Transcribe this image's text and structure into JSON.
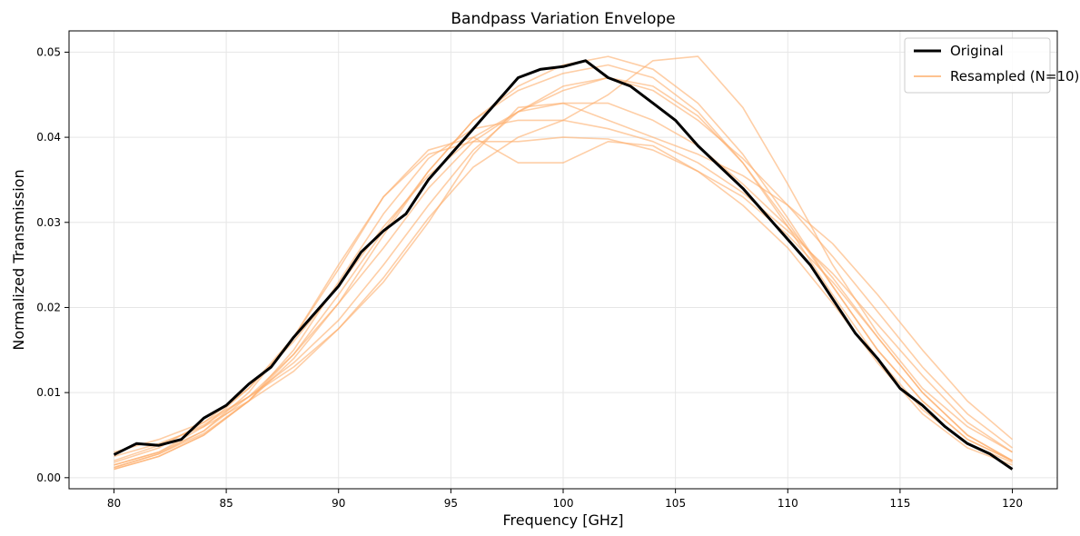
{
  "chart_data": {
    "type": "line",
    "title": "Bandpass Variation Envelope",
    "xlabel": "Frequency [GHz]",
    "ylabel": "Normalized Transmission",
    "xlim": [
      78.0,
      122.0
    ],
    "ylim": [
      -0.0013,
      0.0525
    ],
    "xticks": [
      80,
      85,
      90,
      95,
      100,
      105,
      110,
      115,
      120
    ],
    "yticks": [
      0.0,
      0.01,
      0.02,
      0.03,
      0.04,
      0.05
    ],
    "ytick_labels": [
      "0.00",
      "0.01",
      "0.02",
      "0.03",
      "0.04",
      "0.05"
    ],
    "grid": true,
    "legend_position": "top-right",
    "original": {
      "name": "Original",
      "color": "#000000",
      "x": [
        80,
        81,
        82,
        83,
        84,
        85,
        86,
        87,
        88,
        89,
        90,
        91,
        92,
        93,
        94,
        95,
        96,
        97,
        98,
        99,
        100,
        101,
        102,
        103,
        104,
        105,
        106,
        107,
        108,
        109,
        110,
        111,
        112,
        113,
        114,
        115,
        116,
        117,
        118,
        119,
        120
      ],
      "y": [
        0.0027,
        0.004,
        0.0038,
        0.0045,
        0.007,
        0.0085,
        0.011,
        0.013,
        0.0165,
        0.0195,
        0.0225,
        0.0265,
        0.029,
        0.031,
        0.035,
        0.038,
        0.041,
        0.044,
        0.047,
        0.048,
        0.0483,
        0.049,
        0.047,
        0.046,
        0.044,
        0.042,
        0.039,
        0.0365,
        0.034,
        0.031,
        0.028,
        0.025,
        0.021,
        0.017,
        0.014,
        0.0105,
        0.0085,
        0.006,
        0.004,
        0.0028,
        0.001
      ]
    },
    "resampled": {
      "name": "Resampled (N=10)",
      "color": "#fdae6b",
      "series": [
        {
          "x": [
            80,
            82,
            84,
            86,
            88,
            90,
            92,
            94,
            96,
            98,
            100,
            102,
            104,
            106,
            108,
            110,
            112,
            114,
            116,
            118,
            120
          ],
          "y": [
            0.0015,
            0.003,
            0.006,
            0.0105,
            0.0165,
            0.0245,
            0.033,
            0.0385,
            0.04,
            0.037,
            0.037,
            0.0395,
            0.039,
            0.036,
            0.033,
            0.0285,
            0.023,
            0.0165,
            0.01,
            0.005,
            0.002
          ]
        },
        {
          "x": [
            80,
            82,
            84,
            86,
            88,
            90,
            92,
            94,
            96,
            98,
            100,
            102,
            104,
            106,
            108,
            110,
            112,
            114,
            116,
            118,
            120
          ],
          "y": [
            0.001,
            0.0025,
            0.005,
            0.009,
            0.0145,
            0.0215,
            0.029,
            0.036,
            0.042,
            0.046,
            0.0485,
            0.0495,
            0.048,
            0.044,
            0.038,
            0.0305,
            0.0225,
            0.015,
            0.009,
            0.0045,
            0.002
          ]
        },
        {
          "x": [
            80,
            82,
            84,
            86,
            88,
            90,
            92,
            94,
            96,
            98,
            100,
            102,
            104,
            106,
            108,
            110,
            112,
            114,
            116,
            118,
            120
          ],
          "y": [
            0.003,
            0.0045,
            0.0065,
            0.0095,
            0.013,
            0.0175,
            0.023,
            0.03,
            0.038,
            0.0435,
            0.044,
            0.042,
            0.04,
            0.038,
            0.0355,
            0.032,
            0.0275,
            0.0215,
            0.015,
            0.009,
            0.0045
          ]
        },
        {
          "x": [
            80,
            82,
            84,
            86,
            88,
            90,
            92,
            94,
            96,
            98,
            100,
            102,
            104,
            106,
            108,
            110,
            112,
            114,
            116,
            118,
            120
          ],
          "y": [
            0.0012,
            0.0028,
            0.0055,
            0.01,
            0.0165,
            0.025,
            0.033,
            0.038,
            0.0395,
            0.0395,
            0.04,
            0.0398,
            0.0385,
            0.036,
            0.032,
            0.027,
            0.0205,
            0.0135,
            0.0075,
            0.0035,
            0.0015
          ]
        },
        {
          "x": [
            80,
            82,
            84,
            86,
            88,
            90,
            92,
            94,
            96,
            98,
            100,
            102,
            104,
            106,
            108,
            110,
            112,
            114,
            116,
            118,
            120
          ],
          "y": [
            0.0025,
            0.004,
            0.006,
            0.009,
            0.0125,
            0.0175,
            0.0235,
            0.0305,
            0.0365,
            0.04,
            0.042,
            0.045,
            0.049,
            0.0495,
            0.0435,
            0.0345,
            0.025,
            0.017,
            0.0105,
            0.006,
            0.003
          ]
        },
        {
          "x": [
            80,
            82,
            84,
            86,
            88,
            90,
            92,
            94,
            96,
            98,
            100,
            102,
            104,
            106,
            108,
            110,
            112,
            114,
            116,
            118,
            120
          ],
          "y": [
            0.0018,
            0.0035,
            0.0065,
            0.0105,
            0.016,
            0.0225,
            0.0295,
            0.0355,
            0.04,
            0.043,
            0.044,
            0.044,
            0.042,
            0.039,
            0.0345,
            0.0295,
            0.0235,
            0.0165,
            0.01,
            0.005,
            0.002
          ]
        },
        {
          "x": [
            80,
            82,
            84,
            86,
            88,
            90,
            92,
            94,
            96,
            98,
            100,
            102,
            104,
            106,
            108,
            110,
            112,
            114,
            116,
            118,
            120
          ],
          "y": [
            0.0015,
            0.003,
            0.0055,
            0.0095,
            0.0145,
            0.0205,
            0.027,
            0.034,
            0.0395,
            0.043,
            0.0455,
            0.047,
            0.046,
            0.0425,
            0.037,
            0.03,
            0.0225,
            0.015,
            0.009,
            0.0045,
            0.002
          ]
        },
        {
          "x": [
            80,
            82,
            84,
            86,
            88,
            90,
            92,
            94,
            96,
            98,
            100,
            102,
            104,
            106,
            108,
            110,
            112,
            114,
            116,
            118,
            120
          ],
          "y": [
            0.0012,
            0.0028,
            0.0052,
            0.009,
            0.014,
            0.0205,
            0.0285,
            0.036,
            0.042,
            0.0455,
            0.0475,
            0.0485,
            0.047,
            0.043,
            0.037,
            0.0295,
            0.0215,
            0.014,
            0.008,
            0.004,
            0.0018
          ]
        },
        {
          "x": [
            80,
            82,
            84,
            86,
            88,
            90,
            92,
            94,
            96,
            98,
            100,
            102,
            104,
            106,
            108,
            110,
            112,
            114,
            116,
            118,
            120
          ],
          "y": [
            0.002,
            0.0038,
            0.0062,
            0.0095,
            0.0135,
            0.0185,
            0.025,
            0.032,
            0.0385,
            0.043,
            0.046,
            0.047,
            0.0455,
            0.042,
            0.0375,
            0.032,
            0.026,
            0.0195,
            0.013,
            0.0075,
            0.0035
          ]
        },
        {
          "x": [
            80,
            82,
            84,
            86,
            88,
            90,
            92,
            94,
            96,
            98,
            100,
            102,
            104,
            106,
            108,
            110,
            112,
            114,
            116,
            118,
            120
          ],
          "y": [
            0.001,
            0.0025,
            0.005,
            0.009,
            0.015,
            0.023,
            0.031,
            0.0375,
            0.041,
            0.042,
            0.042,
            0.041,
            0.0395,
            0.037,
            0.0335,
            0.029,
            0.024,
            0.018,
            0.012,
            0.0065,
            0.003
          ]
        }
      ]
    }
  }
}
